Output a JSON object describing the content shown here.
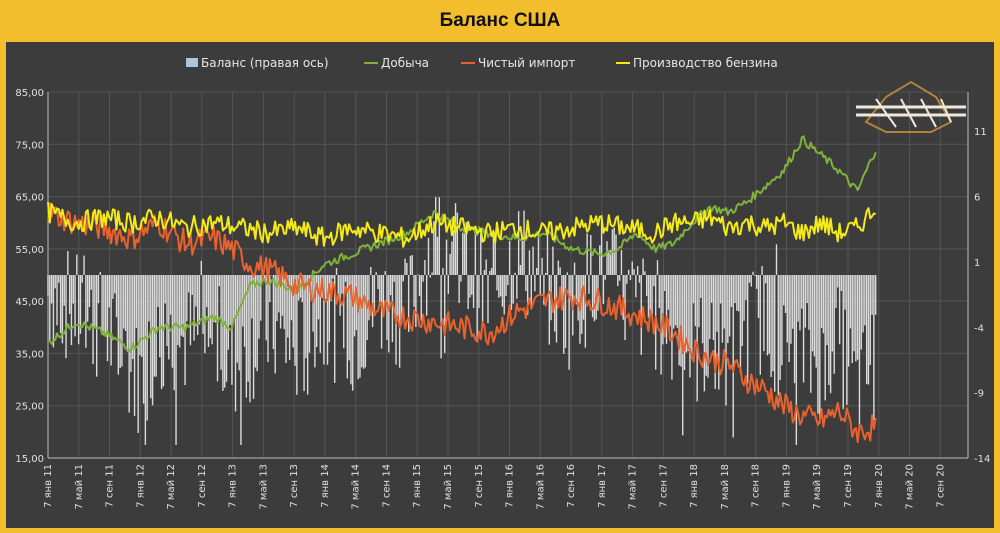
{
  "chart_data": {
    "type": "line",
    "title": "Баланс США",
    "legend_placement": "top",
    "grid": true,
    "series": [
      {
        "name": "Баланс (правая ось)",
        "kind": "bar",
        "axis": "right",
        "color": "#d9d9d9"
      },
      {
        "name": "Добыча",
        "kind": "line",
        "axis": "left",
        "color": "#7fb13b"
      },
      {
        "name": "Чистый импорт",
        "kind": "line",
        "axis": "left",
        "color": "#e8622e"
      },
      {
        "name": "Производство бензина",
        "kind": "line",
        "axis": "left",
        "color": "#f3ea18"
      }
    ],
    "y_left": {
      "min": 15,
      "max": 85,
      "ticks": [
        "15,00",
        "25,00",
        "35,00",
        "45,00",
        "55,00",
        "65,00",
        "75,00",
        "85,00"
      ]
    },
    "y_right": {
      "min": -14,
      "max": 14,
      "ticks": [
        "-14",
        "-9",
        "-4",
        "1",
        "6",
        "11"
      ]
    },
    "x_ticks": [
      "7 янв 11",
      "7 май 11",
      "7 сен 11",
      "7 янв 12",
      "7 май 12",
      "7 сен 12",
      "7 янв 13",
      "7 май 13",
      "7 сен 13",
      "7 янв 14",
      "7 май 14",
      "7 сен 14",
      "7 янв 15",
      "7 май 15",
      "7 сен 15",
      "7 янв 16",
      "7 май 16",
      "7 сен 16",
      "7 янв 17",
      "7 май 17",
      "7 сен 17",
      "7 янв 18",
      "7 май 18",
      "7 сен 18",
      "7 янв 19",
      "7 май 19",
      "7 сен 19",
      "7 янв 20",
      "7 май 20",
      "7 сен 20"
    ],
    "production_keypoints": [
      [
        0,
        37
      ],
      [
        3,
        41
      ],
      [
        6,
        39
      ],
      [
        9,
        36
      ],
      [
        12,
        40
      ],
      [
        15,
        40
      ],
      [
        18,
        42
      ],
      [
        20,
        40
      ],
      [
        22,
        48
      ],
      [
        24,
        49
      ],
      [
        27,
        47
      ],
      [
        30,
        52
      ],
      [
        33,
        54
      ],
      [
        36,
        56
      ],
      [
        39,
        58
      ],
      [
        42,
        62
      ],
      [
        45,
        59
      ],
      [
        48,
        58
      ],
      [
        51,
        57
      ],
      [
        54,
        58
      ],
      [
        57,
        55
      ],
      [
        60,
        54
      ],
      [
        62,
        55
      ],
      [
        64,
        58
      ],
      [
        66,
        55
      ],
      [
        68,
        56
      ],
      [
        70,
        60
      ],
      [
        72,
        63
      ],
      [
        74,
        62
      ],
      [
        76,
        64
      ],
      [
        78,
        67
      ],
      [
        80,
        70
      ],
      [
        81,
        73
      ],
      [
        82,
        76
      ],
      [
        84,
        73
      ],
      [
        86,
        70
      ],
      [
        88,
        66
      ],
      [
        90,
        74
      ]
    ],
    "imports_keypoints": [
      [
        0,
        62
      ],
      [
        3,
        60
      ],
      [
        6,
        59
      ],
      [
        9,
        57
      ],
      [
        12,
        60
      ],
      [
        15,
        56
      ],
      [
        18,
        57
      ],
      [
        20,
        55
      ],
      [
        22,
        52
      ],
      [
        24,
        51
      ],
      [
        27,
        48
      ],
      [
        30,
        47
      ],
      [
        33,
        46
      ],
      [
        36,
        43
      ],
      [
        39,
        42
      ],
      [
        42,
        41
      ],
      [
        45,
        40
      ],
      [
        48,
        39
      ],
      [
        51,
        43
      ],
      [
        54,
        45
      ],
      [
        57,
        46
      ],
      [
        60,
        45
      ],
      [
        63,
        43
      ],
      [
        66,
        41
      ],
      [
        68,
        39
      ],
      [
        70,
        36
      ],
      [
        72,
        34
      ],
      [
        74,
        33
      ],
      [
        76,
        30
      ],
      [
        78,
        28
      ],
      [
        80,
        25
      ],
      [
        82,
        23
      ],
      [
        84,
        22
      ],
      [
        86,
        24
      ],
      [
        88,
        20
      ],
      [
        90,
        21
      ]
    ],
    "gasoline_keypoints": [
      [
        0,
        62
      ],
      [
        3,
        60
      ],
      [
        6,
        61
      ],
      [
        9,
        60
      ],
      [
        12,
        61
      ],
      [
        15,
        59
      ],
      [
        18,
        60
      ],
      [
        21,
        59
      ],
      [
        24,
        58
      ],
      [
        27,
        59
      ],
      [
        30,
        57
      ],
      [
        33,
        59
      ],
      [
        36,
        58
      ],
      [
        39,
        57
      ],
      [
        42,
        60
      ],
      [
        45,
        59
      ],
      [
        48,
        58
      ],
      [
        51,
        59
      ],
      [
        54,
        58
      ],
      [
        57,
        59
      ],
      [
        60,
        60
      ],
      [
        63,
        59
      ],
      [
        66,
        58
      ],
      [
        68,
        60
      ],
      [
        70,
        60
      ],
      [
        72,
        61
      ],
      [
        74,
        59
      ],
      [
        76,
        60
      ],
      [
        78,
        59
      ],
      [
        80,
        60
      ],
      [
        82,
        58
      ],
      [
        84,
        60
      ],
      [
        86,
        58
      ],
      [
        88,
        59
      ],
      [
        90,
        63
      ]
    ],
    "balance_envelope": [
      [
        0,
        -1.5
      ],
      [
        6,
        -4
      ],
      [
        10,
        -8
      ],
      [
        12,
        -5
      ],
      [
        18,
        -5
      ],
      [
        20,
        -7
      ],
      [
        24,
        -4
      ],
      [
        27,
        -6
      ],
      [
        30,
        -3
      ],
      [
        33,
        -5
      ],
      [
        36,
        -2
      ],
      [
        39,
        -3
      ],
      [
        42,
        3
      ],
      [
        45,
        1
      ],
      [
        48,
        -2
      ],
      [
        51,
        2
      ],
      [
        54,
        -1
      ],
      [
        57,
        -3
      ],
      [
        60,
        1
      ],
      [
        63,
        -2
      ],
      [
        66,
        -3
      ],
      [
        68,
        -4
      ],
      [
        70,
        -6
      ],
      [
        72,
        -5
      ],
      [
        74,
        -7
      ],
      [
        76,
        -4
      ],
      [
        78,
        -3
      ],
      [
        80,
        -6
      ],
      [
        82,
        -6
      ],
      [
        84,
        -7
      ],
      [
        86,
        -5
      ],
      [
        88,
        -9
      ],
      [
        90,
        -6
      ]
    ]
  }
}
